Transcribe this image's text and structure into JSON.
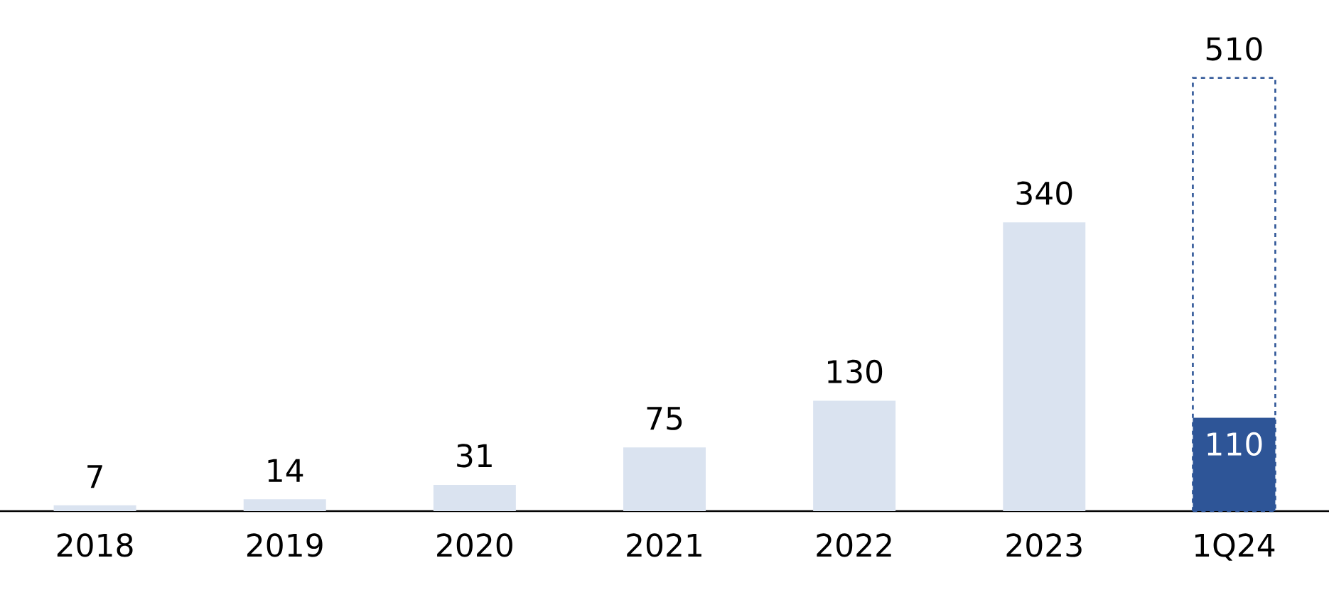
{
  "chart_data": {
    "type": "bar",
    "categories": [
      "2018",
      "2019",
      "2020",
      "2021",
      "2022",
      "2023",
      "1Q24"
    ],
    "series": [
      {
        "color": "#dae3f0",
        "values": [
          7,
          14,
          31,
          75,
          130,
          340,
          null
        ]
      },
      {
        "color": "#2e5597",
        "line_style": "dashed",
        "values": [
          null,
          null,
          null,
          null,
          null,
          null,
          510
        ]
      },
      {
        "color": "#2e5597",
        "values": [
          null,
          null,
          null,
          null,
          null,
          null,
          110
        ]
      }
    ],
    "data_labels": true
  }
}
